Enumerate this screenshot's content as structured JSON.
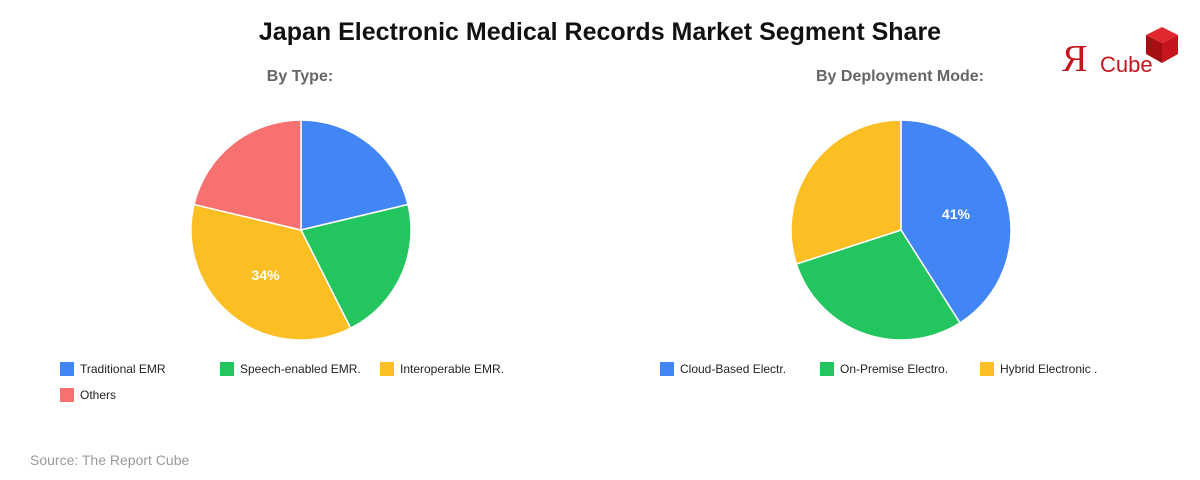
{
  "title": "Japan Electronic Medical Records Market Segment Share",
  "source": "Source: The Report Cube",
  "logo": {
    "letter": "Я",
    "text": "Cube",
    "color": "#c4161c"
  },
  "chart_data": [
    {
      "type": "pie",
      "title": "By Type:",
      "slices": [
        {
          "label": "Traditional EMR",
          "value": 20,
          "color": "#4285f4"
        },
        {
          "label": "Speech-enabled EMR.",
          "value": 20,
          "color": "#22c55e"
        },
        {
          "label": "Interoperable EMR.",
          "value": 34,
          "color": "#fbbf24",
          "data_label": "34%"
        },
        {
          "label": "Others",
          "value": 20,
          "color": "#f87171"
        }
      ]
    },
    {
      "type": "pie",
      "title": "By Deployment Mode:",
      "slices": [
        {
          "label": "Cloud-Based Electr.",
          "value": 41,
          "color": "#4285f4",
          "data_label": "41%"
        },
        {
          "label": "On-Premise Electro.",
          "value": 29,
          "color": "#22c55e"
        },
        {
          "label": "Hybrid Electronic .",
          "value": 30,
          "color": "#fbbf24"
        }
      ]
    }
  ]
}
